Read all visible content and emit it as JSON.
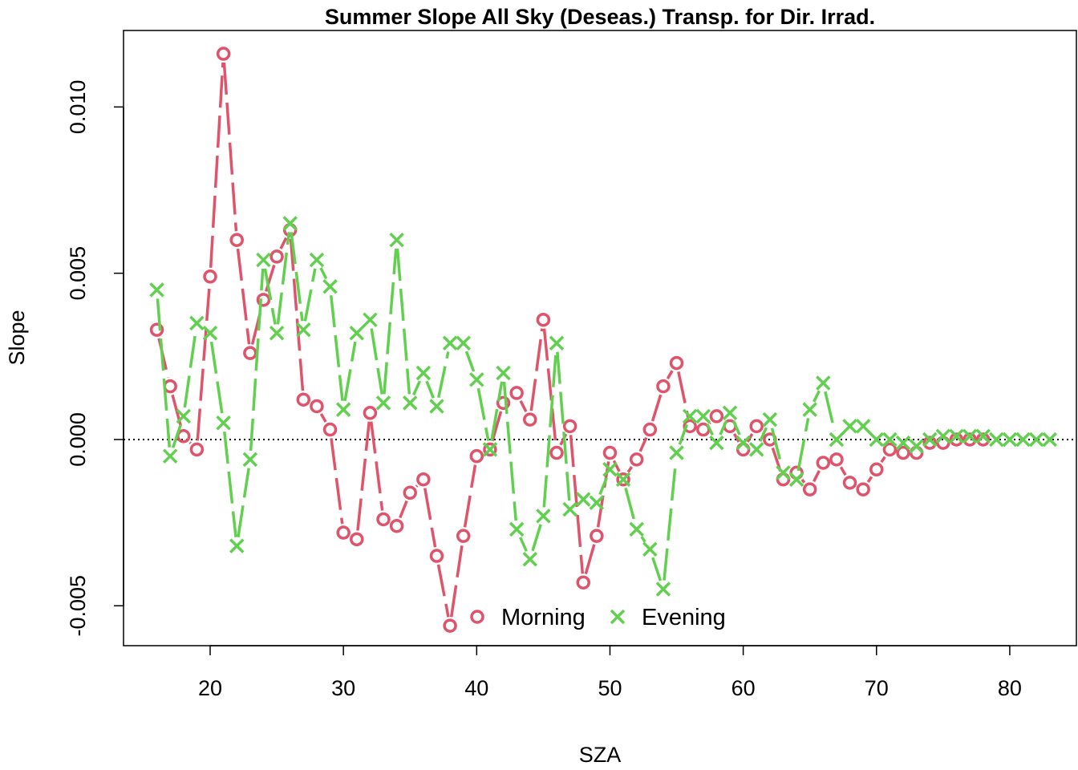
{
  "chart_data": {
    "type": "line",
    "title": "Summer Slope All Sky (Deseas.) Transp. for Dir. Irrad.",
    "xlabel": "SZA",
    "ylabel": "Slope",
    "xlim": [
      13.5,
      85
    ],
    "ylim": [
      -0.0062,
      0.0123
    ],
    "x_ticks": [
      20,
      30,
      40,
      50,
      60,
      70,
      80
    ],
    "x_tick_labels": [
      "20",
      "30",
      "40",
      "50",
      "60",
      "70",
      "80"
    ],
    "y_ticks": [
      -0.005,
      0.0,
      0.005,
      0.01
    ],
    "y_tick_labels": [
      "-0.005",
      "0.000",
      "0.005",
      "0.010"
    ],
    "reference_line": {
      "y": 0,
      "style": "dotted",
      "color": "#000000"
    },
    "legend": {
      "position": "bottom-center",
      "horizontal": true
    },
    "series": [
      {
        "name": "Morning",
        "color": "#DF536B",
        "marker": "circle",
        "line_style": "dashed",
        "x": [
          16,
          17,
          18,
          19,
          20,
          21,
          22,
          23,
          24,
          25,
          26,
          27,
          28,
          29,
          30,
          31,
          32,
          33,
          34,
          35,
          36,
          37,
          38,
          39,
          40,
          41,
          42,
          43,
          44,
          45,
          46,
          47,
          48,
          49,
          50,
          51,
          52,
          53,
          54,
          55,
          56,
          57,
          58,
          59,
          60,
          61,
          62,
          63,
          64,
          65,
          66,
          67,
          68,
          69,
          70,
          71,
          72,
          73,
          74,
          75,
          76,
          77,
          78
        ],
        "y": [
          0.0033,
          0.0016,
          0.0001,
          -0.0003,
          0.0049,
          0.0116,
          0.006,
          0.0026,
          0.0042,
          0.0055,
          0.0063,
          0.0012,
          0.001,
          0.0003,
          -0.0028,
          -0.003,
          0.0008,
          -0.0024,
          -0.0026,
          -0.0016,
          -0.0012,
          -0.0035,
          -0.0056,
          -0.0029,
          -0.0005,
          -0.0003,
          0.0011,
          0.0014,
          0.0006,
          0.0036,
          -0.0004,
          0.0004,
          -0.0043,
          -0.0029,
          -0.0004,
          -0.0012,
          -0.0006,
          0.0003,
          0.0016,
          0.0023,
          0.0004,
          0.0003,
          0.0007,
          0.0004,
          -0.0003,
          0.0004,
          0.0,
          -0.0012,
          -0.001,
          -0.0015,
          -0.0007,
          -0.0006,
          -0.0013,
          -0.0015,
          -0.0009,
          -0.0003,
          -0.0004,
          -0.0004,
          -0.0001,
          -0.0001,
          0.0,
          0.0,
          0.0
        ]
      },
      {
        "name": "Evening",
        "color": "#61D04F",
        "marker": "x",
        "line_style": "dashed",
        "x": [
          16,
          17,
          18,
          19,
          20,
          21,
          22,
          23,
          24,
          25,
          26,
          27,
          28,
          29,
          30,
          31,
          32,
          33,
          34,
          35,
          36,
          37,
          38,
          39,
          40,
          41,
          42,
          43,
          44,
          45,
          46,
          47,
          48,
          49,
          50,
          51,
          52,
          53,
          54,
          55,
          56,
          57,
          58,
          59,
          60,
          61,
          62,
          63,
          64,
          65,
          66,
          67,
          68,
          69,
          70,
          71,
          72,
          73,
          74,
          75,
          76,
          77,
          78,
          79,
          80,
          81,
          82,
          83
        ],
        "y": [
          0.0045,
          -0.0005,
          0.0007,
          0.0035,
          0.0032,
          0.0005,
          -0.0032,
          -0.0006,
          0.0054,
          0.0032,
          0.0065,
          0.0033,
          0.0054,
          0.0046,
          0.0009,
          0.0032,
          0.0036,
          0.0011,
          0.006,
          0.0011,
          0.002,
          0.001,
          0.0029,
          0.0029,
          0.0018,
          -0.0003,
          0.002,
          -0.0027,
          -0.0036,
          -0.0023,
          0.0029,
          -0.0021,
          -0.0018,
          -0.0019,
          -0.0009,
          -0.0012,
          -0.0027,
          -0.0033,
          -0.0045,
          -0.0004,
          0.0007,
          0.0007,
          -0.0001,
          0.0008,
          -0.0001,
          -0.0003,
          0.0006,
          -0.001,
          -0.0012,
          0.0009,
          0.0017,
          0.0,
          0.0004,
          0.0004,
          0.0,
          0.0,
          -0.0001,
          -0.0002,
          0.0,
          0.0001,
          0.0001,
          0.0001,
          0.0001,
          0.0,
          0.0,
          0.0,
          0.0,
          0.0
        ]
      }
    ]
  }
}
